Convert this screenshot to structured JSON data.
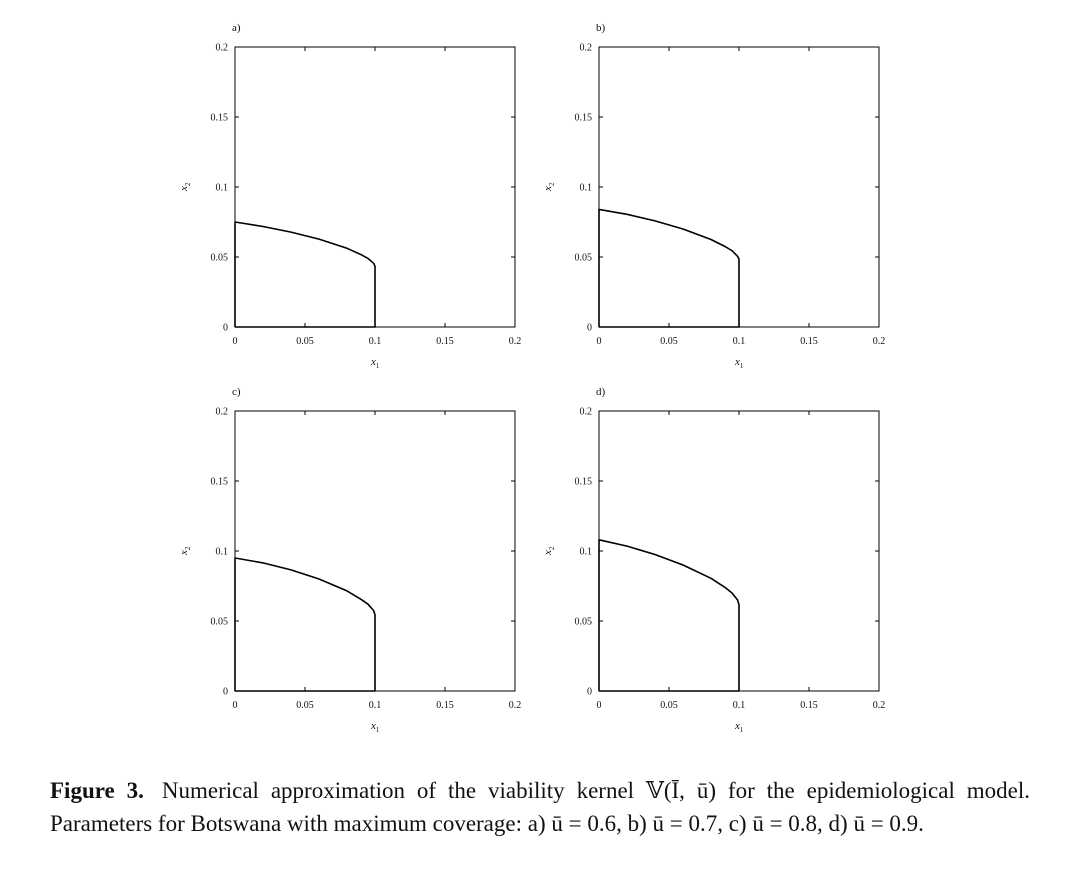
{
  "chart_data": [
    {
      "type": "line",
      "panel_label": "a)",
      "xlabel": "x",
      "xlabel_sub": "1",
      "ylabel": "x",
      "ylabel_sub": "2",
      "xlim": [
        0,
        0.2
      ],
      "ylim": [
        0,
        0.2
      ],
      "xticks": [
        "0",
        "0.05",
        "0.1",
        "0.15",
        "0.2"
      ],
      "yticks": [
        "0",
        "0.05",
        "0.1",
        "0.15",
        "0.2"
      ],
      "grid": false,
      "series": [
        {
          "x": [
            0,
            0,
            0.02,
            0.04,
            0.06,
            0.08,
            0.09,
            0.095,
            0.099,
            0.1,
            0.1,
            0
          ],
          "y": [
            0,
            0.075,
            0.0718,
            0.0678,
            0.0628,
            0.0562,
            0.0517,
            0.049,
            0.0455,
            0.0435,
            0,
            0
          ]
        }
      ]
    },
    {
      "type": "line",
      "panel_label": "b)",
      "xlabel": "x",
      "xlabel_sub": "1",
      "ylabel": "x",
      "ylabel_sub": "2",
      "xlim": [
        0,
        0.2
      ],
      "ylim": [
        0,
        0.2
      ],
      "xticks": [
        "0",
        "0.05",
        "0.1",
        "0.15",
        "0.2"
      ],
      "yticks": [
        "0",
        "0.05",
        "0.1",
        "0.15",
        "0.2"
      ],
      "grid": false,
      "series": [
        {
          "x": [
            0,
            0,
            0.02,
            0.04,
            0.06,
            0.08,
            0.09,
            0.095,
            0.099,
            0.1,
            0.1,
            0
          ],
          "y": [
            0,
            0.084,
            0.0805,
            0.0758,
            0.07,
            0.0625,
            0.0575,
            0.0545,
            0.0505,
            0.0485,
            0,
            0
          ]
        }
      ]
    },
    {
      "type": "line",
      "panel_label": "c)",
      "xlabel": "x",
      "xlabel_sub": "1",
      "ylabel": "x",
      "ylabel_sub": "2",
      "xlim": [
        0,
        0.2
      ],
      "ylim": [
        0,
        0.2
      ],
      "xticks": [
        "0",
        "0.05",
        "0.1",
        "0.15",
        "0.2"
      ],
      "yticks": [
        "0",
        "0.05",
        "0.1",
        "0.15",
        "0.2"
      ],
      "grid": false,
      "series": [
        {
          "x": [
            0,
            0,
            0.02,
            0.04,
            0.06,
            0.08,
            0.09,
            0.095,
            0.099,
            0.1,
            0.1,
            0
          ],
          "y": [
            0,
            0.095,
            0.0915,
            0.0865,
            0.08,
            0.0715,
            0.0655,
            0.062,
            0.0575,
            0.0545,
            0,
            0
          ]
        }
      ]
    },
    {
      "type": "line",
      "panel_label": "d)",
      "xlabel": "x",
      "xlabel_sub": "1",
      "ylabel": "x",
      "ylabel_sub": "2",
      "xlim": [
        0,
        0.2
      ],
      "ylim": [
        0,
        0.2
      ],
      "xticks": [
        "0",
        "0.05",
        "0.1",
        "0.15",
        "0.2"
      ],
      "yticks": [
        "0",
        "0.05",
        "0.1",
        "0.15",
        "0.2"
      ],
      "grid": false,
      "series": [
        {
          "x": [
            0,
            0,
            0.02,
            0.04,
            0.06,
            0.08,
            0.09,
            0.095,
            0.099,
            0.1,
            0.1,
            0
          ],
          "y": [
            0,
            0.108,
            0.1035,
            0.0975,
            0.09,
            0.0805,
            0.074,
            0.07,
            0.065,
            0.0615,
            0,
            0
          ]
        }
      ]
    }
  ],
  "caption": {
    "label": "Figure 3.",
    "text": "Numerical approximation of the viability kernel 𝕍(Ī, ū) for the epidemiological model. Parameters for Botswana with maximum coverage: a) ū = 0.6, b) ū = 0.7, c) ū = 0.8, d) ū = 0.9."
  },
  "colors": {
    "line": "#000000",
    "frame": "#000000",
    "text": "#111111"
  }
}
